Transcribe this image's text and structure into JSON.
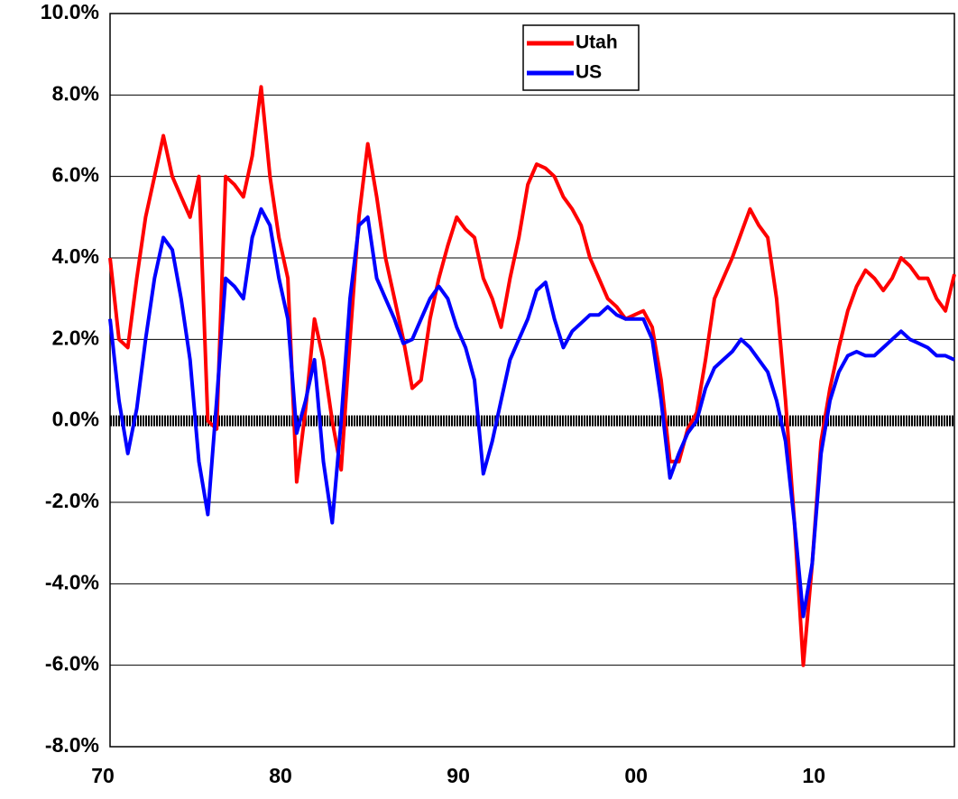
{
  "chart_data": {
    "type": "line",
    "categories": [
      "70",
      null,
      null,
      null,
      null,
      null,
      null,
      null,
      null,
      null,
      null,
      null,
      null,
      null,
      null,
      null,
      null,
      null,
      null,
      null,
      "80",
      null,
      null,
      null,
      null,
      null,
      null,
      null,
      null,
      null,
      null,
      null,
      null,
      null,
      null,
      null,
      null,
      null,
      null,
      null,
      "90",
      null,
      null,
      null,
      null,
      null,
      null,
      null,
      null,
      null,
      null,
      null,
      null,
      null,
      null,
      null,
      null,
      null,
      null,
      null,
      "00",
      null,
      null,
      null,
      null,
      null,
      null,
      null,
      null,
      null,
      null,
      null,
      null,
      null,
      null,
      null,
      null,
      null,
      null,
      null,
      "10",
      null,
      null,
      null,
      null,
      null,
      null,
      null,
      null,
      null,
      null,
      null,
      null,
      null,
      null,
      null
    ],
    "series": [
      {
        "name": "Utah",
        "color": "#ff0000",
        "values": [
          4.0,
          2.0,
          1.8,
          3.5,
          5.0,
          6.0,
          7.0,
          6.0,
          5.5,
          5.0,
          6.0,
          0.0,
          -0.2,
          6.0,
          5.8,
          5.5,
          6.5,
          8.2,
          6.0,
          4.5,
          3.5,
          -1.5,
          0.3,
          2.5,
          1.5,
          0.0,
          -1.2,
          2.0,
          5.0,
          6.8,
          5.5,
          4.0,
          3.0,
          2.0,
          0.8,
          1.0,
          2.5,
          3.5,
          4.3,
          5.0,
          4.7,
          4.5,
          3.5,
          3.0,
          2.3,
          3.5,
          4.5,
          5.8,
          6.3,
          6.2,
          6.0,
          5.5,
          5.2,
          4.8,
          4.0,
          3.5,
          3.0,
          2.8,
          2.5,
          2.6,
          2.7,
          2.3,
          1.0,
          -1.0,
          -1.0,
          -0.2,
          0.2,
          1.5,
          3.0,
          3.5,
          4.0,
          4.6,
          5.2,
          4.8,
          4.5,
          3.0,
          0.5,
          -2.5,
          -6.0,
          -3.5,
          -0.5,
          0.8,
          1.8,
          2.7,
          3.3,
          3.7,
          3.5,
          3.2,
          3.5,
          4.0,
          3.8,
          3.5,
          3.5,
          3.0,
          2.7,
          3.6
        ]
      },
      {
        "name": "US",
        "color": "#0000ff",
        "values": [
          2.5,
          0.5,
          -0.8,
          0.3,
          2.0,
          3.5,
          4.5,
          4.2,
          3.0,
          1.5,
          -1.0,
          -2.3,
          0.5,
          3.5,
          3.3,
          3.0,
          4.5,
          5.2,
          4.8,
          3.5,
          2.5,
          -0.3,
          0.5,
          1.5,
          -1.0,
          -2.5,
          0.0,
          3.0,
          4.8,
          5.0,
          3.5,
          3.0,
          2.5,
          1.9,
          2.0,
          2.5,
          3.0,
          3.3,
          3.0,
          2.3,
          1.8,
          1.0,
          -1.3,
          -0.5,
          0.5,
          1.5,
          2.0,
          2.5,
          3.2,
          3.4,
          2.5,
          1.8,
          2.2,
          2.4,
          2.6,
          2.6,
          2.8,
          2.6,
          2.5,
          2.5,
          2.5,
          2.0,
          0.5,
          -1.4,
          -0.8,
          -0.3,
          0.0,
          0.8,
          1.3,
          1.5,
          1.7,
          2.0,
          1.8,
          1.5,
          1.2,
          0.5,
          -0.5,
          -2.5,
          -4.8,
          -3.5,
          -0.8,
          0.5,
          1.2,
          1.6,
          1.7,
          1.6,
          1.6,
          1.8,
          2.0,
          2.2,
          2.0,
          1.9,
          1.8,
          1.6,
          1.6,
          1.5
        ]
      }
    ],
    "ylim": [
      -8,
      10
    ],
    "yticks": [
      {
        "value": -8,
        "label": "-8.0%"
      },
      {
        "value": -6,
        "label": "-6.0%"
      },
      {
        "value": -4,
        "label": "-4.0%"
      },
      {
        "value": -2,
        "label": "-2.0%"
      },
      {
        "value": 0,
        "label": "0.0%"
      },
      {
        "value": 2,
        "label": "2.0%"
      },
      {
        "value": 4,
        "label": "4.0%"
      },
      {
        "value": 6,
        "label": "6.0%"
      },
      {
        "value": 8,
        "label": "8.0%"
      },
      {
        "value": 10,
        "label": "10.0%"
      }
    ],
    "grid": true
  }
}
